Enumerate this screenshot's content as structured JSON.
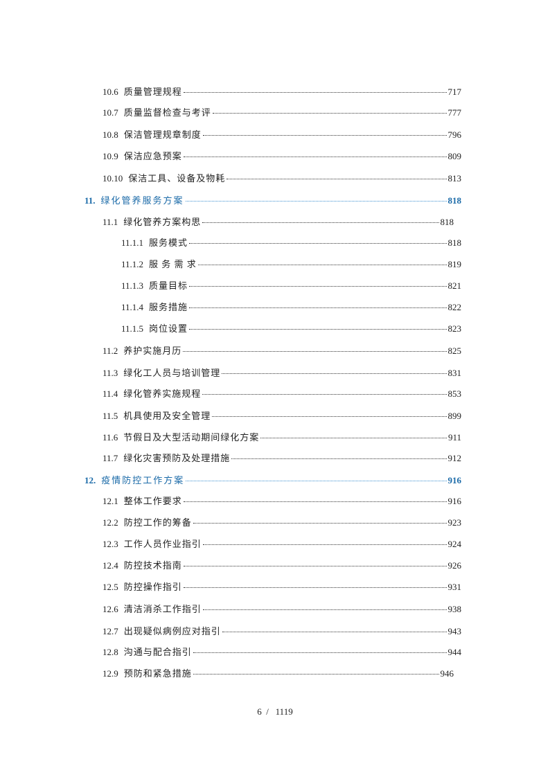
{
  "toc": [
    {
      "num": "10.6",
      "title": "质量管理规程",
      "page": "717",
      "level": 1
    },
    {
      "num": "10.7",
      "title": "质量监督检查与考评",
      "page": "777",
      "level": 1
    },
    {
      "num": "10.8",
      "title": "保洁管理规章制度",
      "page": "796",
      "level": 1
    },
    {
      "num": "10.9",
      "title": "保洁应急预案",
      "page": "809",
      "level": 1
    },
    {
      "num": "10.10",
      "title": "保洁工具、设备及物耗",
      "page": "813",
      "level": 1
    },
    {
      "num": "11.",
      "title": "绿化管养服务方案",
      "page": "818",
      "level": 0
    },
    {
      "num": "11.1",
      "title": "绿化管养方案构思",
      "page": "818",
      "level": 1,
      "short": true
    },
    {
      "num": "11.1.1",
      "title": "服务模式",
      "page": "818",
      "level": 2
    },
    {
      "num": "11.1.2",
      "title": "服 务 需 求",
      "page": "819",
      "level": 2
    },
    {
      "num": "11.1.3",
      "title": "质量目标",
      "page": "821",
      "level": 2
    },
    {
      "num": "11.1.4",
      "title": "服务措施",
      "page": "822",
      "level": 2
    },
    {
      "num": "11.1.5",
      "title": "岗位设置",
      "page": "823",
      "level": 2
    },
    {
      "num": "11.2",
      "title": "养护实施月历",
      "page": "825",
      "level": 1
    },
    {
      "num": "11.3",
      "title": "绿化工人员与培训管理",
      "page": "831",
      "level": 1
    },
    {
      "num": "11.4",
      "title": "绿化管养实施规程",
      "page": "853",
      "level": 1
    },
    {
      "num": "11.5",
      "title": "机具使用及安全管理",
      "page": "899",
      "level": 1
    },
    {
      "num": "11.6",
      "title": "节假日及大型活动期间绿化方案",
      "page": "911",
      "level": 1
    },
    {
      "num": "11.7",
      "title": "绿化灾害预防及处理措施",
      "page": "912",
      "level": 1
    },
    {
      "num": "12.",
      "title": "疫情防控工作方案",
      "page": "916",
      "level": 0
    },
    {
      "num": "12.1",
      "title": "整体工作要求",
      "page": "916",
      "level": 1
    },
    {
      "num": "12.2",
      "title": "防控工作的筹备",
      "page": "923",
      "level": 1
    },
    {
      "num": "12.3",
      "title": "工作人员作业指引",
      "page": "924",
      "level": 1
    },
    {
      "num": "12.4",
      "title": "防控技术指南",
      "page": "926",
      "level": 1
    },
    {
      "num": "12.5",
      "title": "防控操作指引",
      "page": "931",
      "level": 1
    },
    {
      "num": "12.6",
      "title": "清洁消杀工作指引",
      "page": "938",
      "level": 1
    },
    {
      "num": "12.7",
      "title": "出现疑似病例应对指引",
      "page": "943",
      "level": 1
    },
    {
      "num": "12.8",
      "title": "沟通与配合指引",
      "page": "944",
      "level": 1
    },
    {
      "num": "12.9",
      "title": "预防和紧急措施",
      "page": "946",
      "level": 1,
      "short": true
    }
  ],
  "footer": {
    "current_page": "6",
    "separator": "/",
    "total_pages": "1119"
  }
}
